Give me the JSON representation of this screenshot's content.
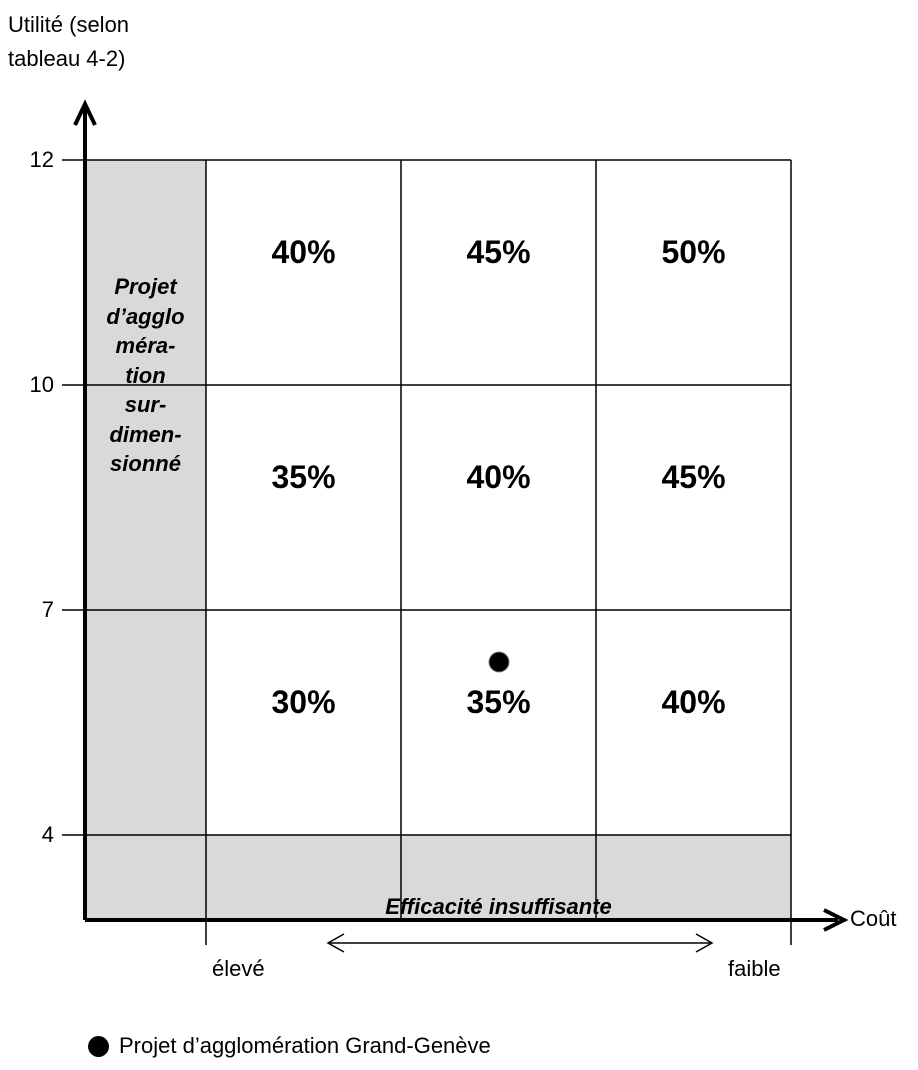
{
  "y_axis": {
    "label_line1": "Utilité (selon",
    "label_line2": "tableau 4-2)",
    "ticks": [
      "12",
      "10",
      "7",
      "4"
    ]
  },
  "x_axis": {
    "label": "Coût",
    "left_label": "élevé",
    "right_label": "faible"
  },
  "gray_regions": {
    "left_label_lines": [
      "Projet",
      "d’agglo",
      "méra-",
      "tion",
      "sur-",
      "dimen-",
      "sionné"
    ],
    "bottom_label": "Efficacité insuffisante"
  },
  "grid": {
    "rows": [
      [
        "40%",
        "45%",
        "50%"
      ],
      [
        "35%",
        "40%",
        "45%"
      ],
      [
        "30%",
        "35%",
        "40%"
      ]
    ]
  },
  "marker": {
    "row": 2,
    "col": 1,
    "description": "Projet d’agglomération Grand-Genève"
  },
  "legend": {
    "label": "Projet d’agglomération Grand-Genève"
  },
  "colors": {
    "gray_fill": "#d9d9d9",
    "line": "#000000"
  }
}
